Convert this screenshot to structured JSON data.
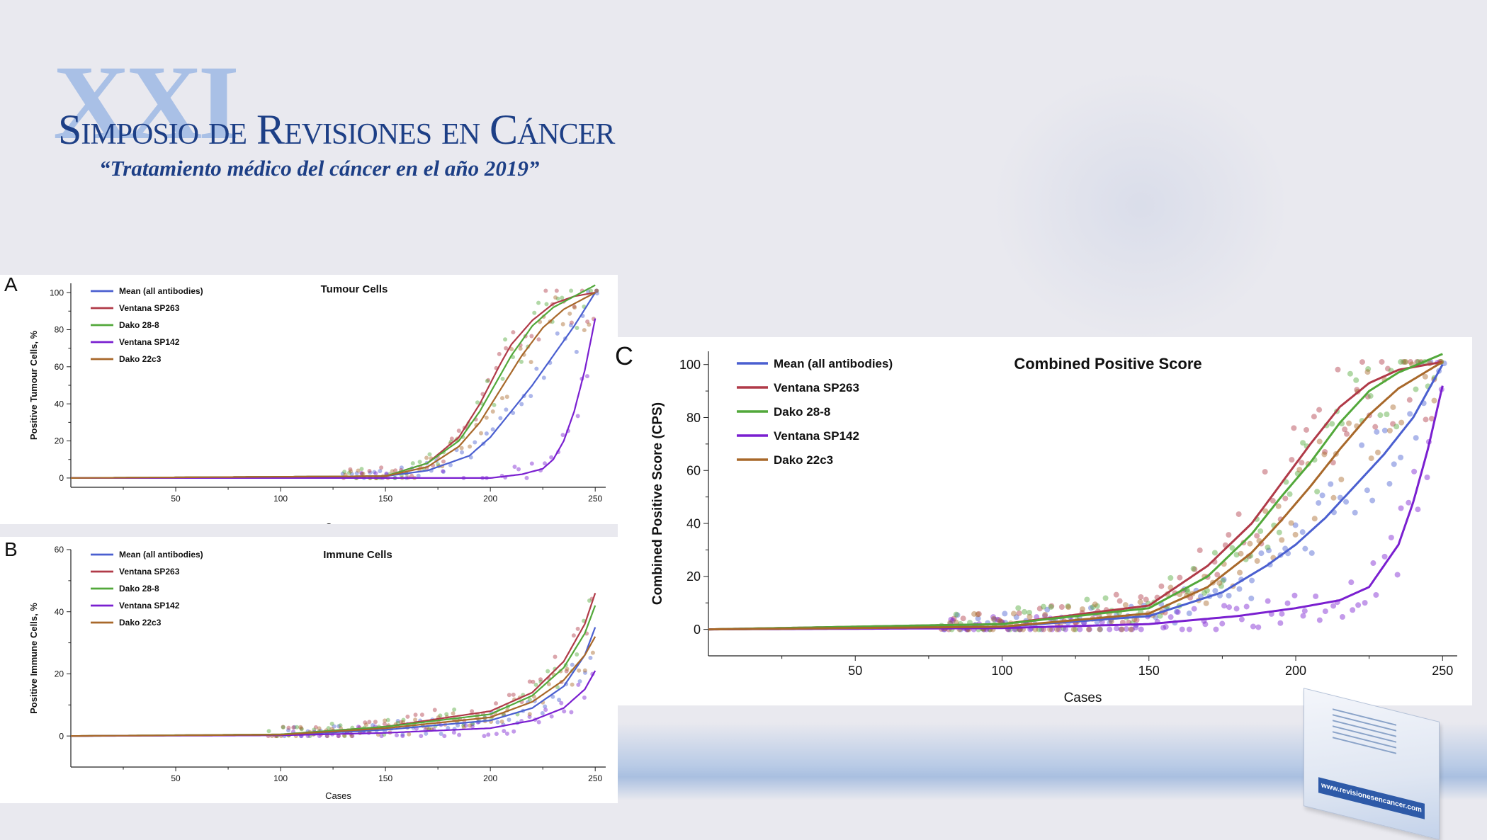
{
  "header": {
    "logo_text": "XXI",
    "title": "Simposio de Revisiones en Cáncer",
    "subtitle": "“Tratamiento médico del cáncer en el año 2019”"
  },
  "brochure": {
    "url_text": "www.revisionesencancer.com"
  },
  "colors": {
    "mean": "#4a5fd0",
    "sp263": "#b03a48",
    "dako288": "#52a83a",
    "sp142": "#7a1fd0",
    "dako22c3": "#a8682a"
  },
  "chart_data": [
    {
      "panel": "A",
      "type": "scatter",
      "title": "Tumour Cells",
      "xlabel": "Cases",
      "ylabel": "Positive Tumour Cells, %",
      "xlim": [
        0,
        255
      ],
      "ylim": [
        -5,
        105
      ],
      "xticks": [
        50,
        100,
        150,
        200,
        250
      ],
      "yticks": [
        0,
        20,
        40,
        60,
        80,
        100
      ],
      "legend_position": "top-left",
      "series": [
        {
          "name": "Mean (all antibodies)",
          "x": [
            0,
            150,
            170,
            190,
            200,
            210,
            220,
            230,
            240,
            250
          ],
          "y": [
            0,
            1,
            4,
            12,
            22,
            36,
            50,
            66,
            82,
            100
          ]
        },
        {
          "name": "Ventana SP263",
          "x": [
            0,
            150,
            170,
            185,
            195,
            205,
            210,
            220,
            230,
            240,
            250
          ],
          "y": [
            0,
            1,
            8,
            22,
            40,
            62,
            72,
            85,
            94,
            98,
            100
          ]
        },
        {
          "name": "Dako 28-8",
          "x": [
            0,
            150,
            170,
            185,
            195,
            205,
            210,
            220,
            230,
            240,
            250
          ],
          "y": [
            0,
            1,
            8,
            20,
            36,
            56,
            66,
            82,
            92,
            98,
            104
          ]
        },
        {
          "name": "Ventana SP142",
          "x": [
            0,
            200,
            215,
            225,
            230,
            235,
            240,
            245,
            250
          ],
          "y": [
            0,
            0,
            2,
            5,
            10,
            20,
            36,
            58,
            86
          ]
        },
        {
          "name": "Dako 22c3",
          "x": [
            0,
            150,
            170,
            185,
            195,
            205,
            215,
            225,
            235,
            245,
            250
          ],
          "y": [
            0,
            1,
            6,
            17,
            30,
            48,
            66,
            81,
            91,
            97,
            100
          ]
        }
      ]
    },
    {
      "panel": "B",
      "type": "scatter",
      "title": "Immune Cells",
      "xlabel": "Cases",
      "ylabel": "Positive Immune Cells, %",
      "xlim": [
        0,
        255
      ],
      "ylim": [
        -10,
        60
      ],
      "xticks": [
        50,
        100,
        150,
        200,
        250
      ],
      "yticks": [
        0,
        20,
        40,
        60
      ],
      "legend_position": "top-left",
      "series": [
        {
          "name": "Mean (all antibodies)",
          "x": [
            0,
            100,
            150,
            200,
            220,
            235,
            245,
            250
          ],
          "y": [
            0,
            0.3,
            2,
            5,
            9,
            16,
            26,
            35
          ]
        },
        {
          "name": "Ventana SP263",
          "x": [
            0,
            100,
            150,
            200,
            220,
            235,
            245,
            250
          ],
          "y": [
            0,
            0.5,
            3,
            8,
            14,
            24,
            36,
            46
          ]
        },
        {
          "name": "Dako 28-8",
          "x": [
            0,
            100,
            150,
            200,
            220,
            235,
            245,
            250
          ],
          "y": [
            0,
            0.5,
            3,
            7,
            13,
            22,
            33,
            42
          ]
        },
        {
          "name": "Ventana SP142",
          "x": [
            0,
            100,
            150,
            200,
            220,
            235,
            245,
            250
          ],
          "y": [
            0,
            0.2,
            1,
            2.5,
            5,
            9,
            15,
            21
          ]
        },
        {
          "name": "Dako 22c3",
          "x": [
            0,
            100,
            150,
            200,
            220,
            235,
            245,
            250
          ],
          "y": [
            0,
            0.4,
            2.5,
            6,
            11,
            18,
            26,
            32
          ]
        }
      ]
    },
    {
      "panel": "C",
      "type": "scatter",
      "title": "Combined Positive Score",
      "xlabel": "Cases",
      "ylabel": "Combined Positive Score (CPS)",
      "xlim": [
        0,
        255
      ],
      "ylim": [
        -10,
        105
      ],
      "xticks": [
        50,
        100,
        150,
        200,
        250
      ],
      "yticks": [
        0,
        20,
        40,
        60,
        80,
        100
      ],
      "legend_position": "top-left",
      "series": [
        {
          "name": "Mean (all antibodies)",
          "x": [
            0,
            100,
            150,
            175,
            190,
            200,
            210,
            220,
            230,
            240,
            250
          ],
          "y": [
            0,
            1,
            5,
            14,
            24,
            32,
            42,
            54,
            66,
            80,
            100
          ]
        },
        {
          "name": "Ventana SP263",
          "x": [
            0,
            100,
            150,
            170,
            185,
            195,
            205,
            215,
            225,
            235,
            250
          ],
          "y": [
            0,
            2,
            9,
            24,
            40,
            55,
            70,
            84,
            93,
            98,
            101
          ]
        },
        {
          "name": "Dako 28-8",
          "x": [
            0,
            100,
            150,
            170,
            185,
            195,
            205,
            215,
            225,
            235,
            250
          ],
          "y": [
            0,
            2,
            8,
            20,
            36,
            50,
            63,
            78,
            90,
            97,
            104
          ]
        },
        {
          "name": "Ventana SP142",
          "x": [
            0,
            100,
            150,
            180,
            200,
            215,
            225,
            235,
            240,
            245,
            250
          ],
          "y": [
            0,
            0.5,
            2,
            5,
            8,
            11,
            16,
            32,
            48,
            68,
            92
          ]
        },
        {
          "name": "Dako 22c3",
          "x": [
            0,
            100,
            150,
            170,
            185,
            195,
            205,
            215,
            225,
            235,
            250
          ],
          "y": [
            0,
            1,
            6,
            16,
            29,
            41,
            54,
            68,
            81,
            91,
            101
          ]
        }
      ]
    }
  ]
}
